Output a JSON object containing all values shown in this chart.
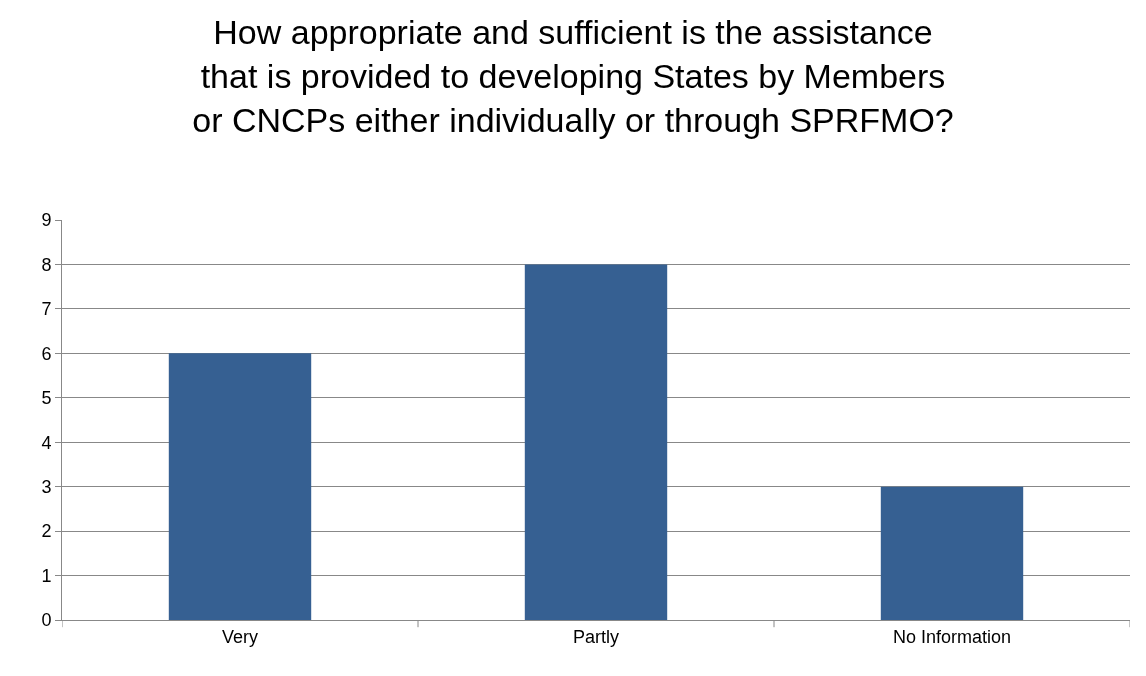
{
  "chart_data": {
    "type": "bar",
    "title": "How appropriate and sufficient is the assistance\nthat is provided to developing States by Members\nor CNCPs either individually or through SPRFMO?",
    "categories": [
      "Very",
      "Partly",
      "No Information"
    ],
    "values": [
      6,
      8,
      3
    ],
    "color": "#366092",
    "ylim": [
      0,
      9
    ],
    "yticks": [
      0,
      1,
      2,
      3,
      4,
      5,
      6,
      7,
      8,
      9
    ],
    "grid": "y"
  }
}
